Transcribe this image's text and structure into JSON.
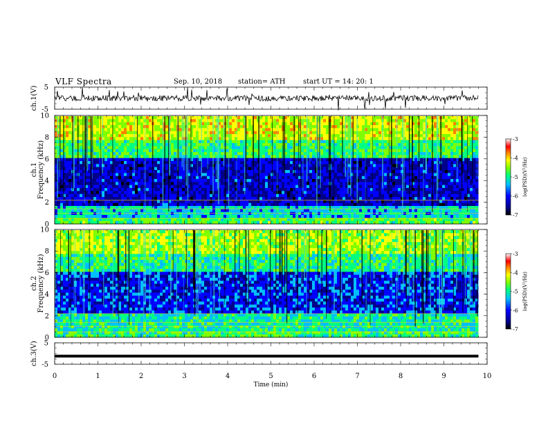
{
  "header": {
    "title": "VLF  Spectra",
    "date": "Sep. 10, 2018",
    "station": "station= ATH",
    "start": "start  UT  =    14: 20: 1"
  },
  "colors": {
    "waveform": "#000000",
    "colormap": [
      "#000000",
      "#00008b",
      "#0000ff",
      "#00bfff",
      "#00ff80",
      "#7fff00",
      "#ffff00",
      "#ff8000",
      "#ff0000",
      "#ffffff"
    ]
  },
  "chart_data": [
    {
      "type": "line",
      "panel": "ch1",
      "ylabel": "ch.1(V)",
      "ylim": [
        -5,
        5
      ],
      "yticks": [
        "5",
        "-5"
      ],
      "xlim": [
        0,
        10
      ],
      "x_extent": [
        0,
        9.8
      ],
      "description_of_series": "noisy waveform around 0 V",
      "level": 0
    },
    {
      "type": "heatmap",
      "panel": "ch1",
      "ylabel": [
        "ch.1",
        "Frequency  (kHz)"
      ],
      "ylim": [
        0,
        10
      ],
      "yticks": [
        "0",
        "2",
        "4",
        "6",
        "8",
        "10"
      ],
      "xlim": [
        0,
        10
      ],
      "x_extent": [
        0,
        9.8
      ],
      "colorbar": {
        "label": "log(PSD)(V²/Hz)",
        "range": [
          -7,
          -3
        ],
        "ticks": [
          "-3",
          "-4",
          "-5",
          "-6",
          "-7"
        ]
      }
    },
    {
      "type": "heatmap",
      "panel": "ch2",
      "ylabel": [
        "ch.2",
        "Frequency  (kHz)"
      ],
      "ylim": [
        0,
        10
      ],
      "yticks": [
        "0",
        "2",
        "4",
        "6",
        "8",
        "10"
      ],
      "xlim": [
        0,
        10
      ],
      "x_extent": [
        0,
        9.8
      ],
      "colorbar": {
        "label": "log(PSD)(V²/Hz)",
        "range": [
          -7,
          -3
        ],
        "ticks": [
          "-3",
          "-4",
          "-5",
          "-6",
          "-7"
        ]
      }
    },
    {
      "type": "line",
      "panel": "ch3",
      "ylabel": "ch.3(V)",
      "ylim": [
        -5,
        5
      ],
      "yticks": [
        "5",
        "-5"
      ],
      "xlim": [
        0,
        10
      ],
      "x_extent": [
        0,
        9.8
      ],
      "level": -1.2,
      "xlabel": "Time  (min)",
      "xticks": [
        "0",
        "1",
        "2",
        "3",
        "4",
        "5",
        "6",
        "7",
        "8",
        "9",
        "10"
      ]
    }
  ]
}
